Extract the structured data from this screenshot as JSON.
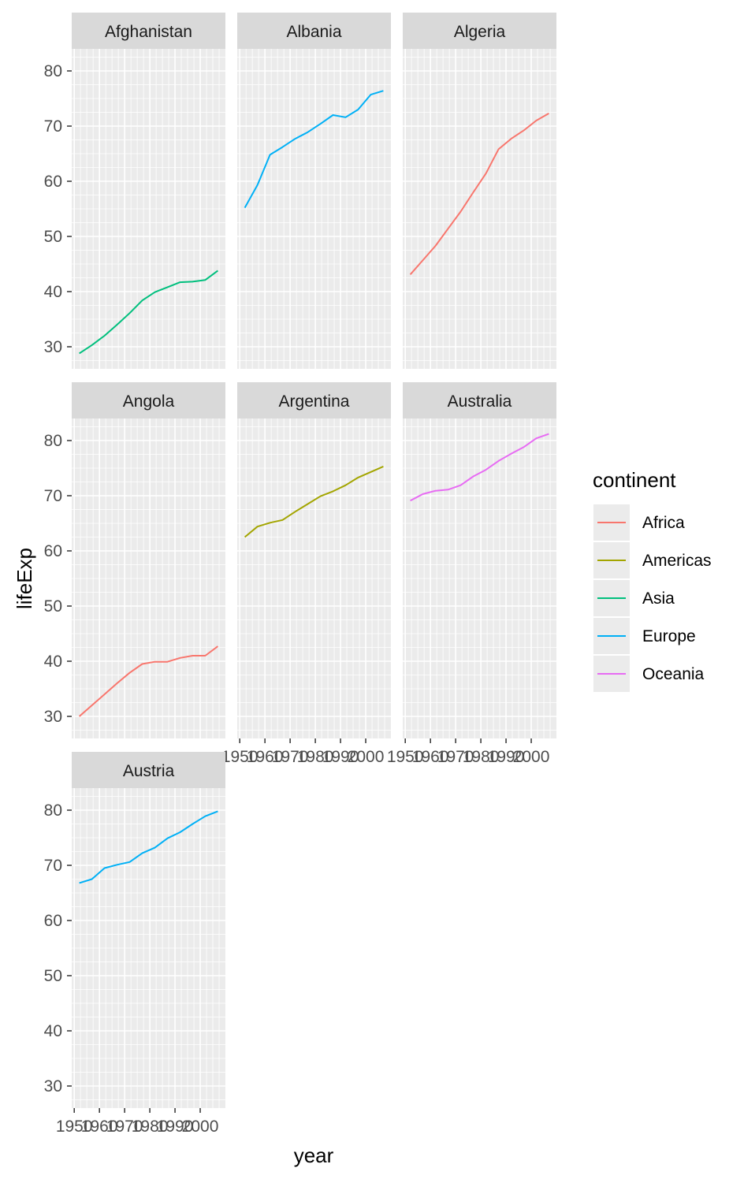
{
  "chart_data": {
    "type": "line",
    "facet_by": "country",
    "xlabel": "year",
    "ylabel": "lifeExp",
    "xlim": [
      1949,
      2010
    ],
    "ylim": [
      26,
      84
    ],
    "x_ticks": [
      "1950",
      "1960",
      "1970",
      "1980",
      "1990",
      "2000"
    ],
    "y_ticks": [
      "30",
      "40",
      "50",
      "60",
      "70",
      "80"
    ],
    "grid": true,
    "legend": {
      "title": "continent",
      "position": "right",
      "entries": [
        {
          "name": "Africa",
          "color": "#F8766D"
        },
        {
          "name": "Americas",
          "color": "#A3A500"
        },
        {
          "name": "Asia",
          "color": "#00BF7D"
        },
        {
          "name": "Europe",
          "color": "#00B0F6"
        },
        {
          "name": "Oceania",
          "color": "#E76BF3"
        }
      ]
    },
    "x": [
      1952,
      1957,
      1962,
      1967,
      1972,
      1977,
      1982,
      1987,
      1992,
      1997,
      2002,
      2007
    ],
    "panels": [
      {
        "country": "Afghanistan",
        "continent": "Asia",
        "color": "#00BF7D",
        "values": [
          28.8,
          30.3,
          32.0,
          34.0,
          36.1,
          38.4,
          39.9,
          40.8,
          41.7,
          41.8,
          42.1,
          43.8
        ]
      },
      {
        "country": "Albania",
        "continent": "Europe",
        "color": "#00B0F6",
        "values": [
          55.2,
          59.3,
          64.8,
          66.2,
          67.7,
          68.9,
          70.4,
          72.0,
          71.6,
          73.0,
          75.7,
          76.4
        ]
      },
      {
        "country": "Algeria",
        "continent": "Africa",
        "color": "#F8766D",
        "values": [
          43.1,
          45.7,
          48.3,
          51.4,
          54.5,
          58.0,
          61.4,
          65.8,
          67.7,
          69.2,
          71.0,
          72.3
        ]
      },
      {
        "country": "Angola",
        "continent": "Africa",
        "color": "#F8766D",
        "values": [
          30.0,
          32.0,
          34.0,
          36.0,
          37.9,
          39.5,
          39.9,
          39.9,
          40.6,
          41.0,
          41.0,
          42.7
        ]
      },
      {
        "country": "Argentina",
        "continent": "Americas",
        "color": "#A3A500",
        "values": [
          62.5,
          64.4,
          65.1,
          65.6,
          67.1,
          68.5,
          69.9,
          70.8,
          71.9,
          73.3,
          74.3,
          75.3
        ]
      },
      {
        "country": "Australia",
        "continent": "Oceania",
        "color": "#E76BF3",
        "values": [
          69.1,
          70.3,
          70.9,
          71.1,
          71.9,
          73.5,
          74.7,
          76.3,
          77.6,
          78.8,
          80.4,
          81.2
        ]
      },
      {
        "country": "Austria",
        "continent": "Europe",
        "color": "#00B0F6",
        "values": [
          66.8,
          67.5,
          69.5,
          70.1,
          70.6,
          72.2,
          73.2,
          74.9,
          76.0,
          77.5,
          78.9,
          79.8
        ]
      }
    ]
  }
}
